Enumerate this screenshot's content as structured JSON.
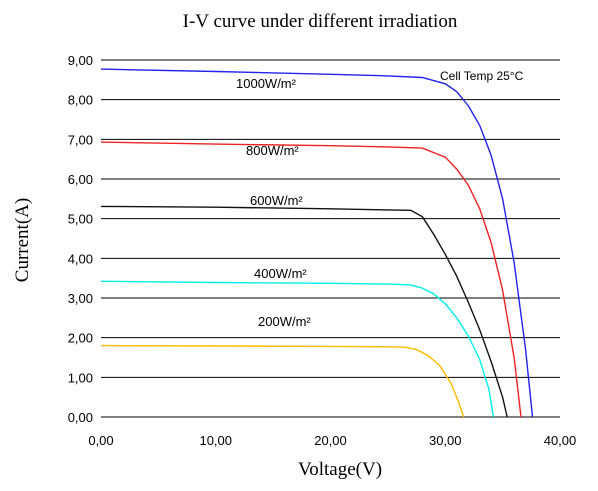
{
  "chart_data": {
    "type": "line",
    "title": "I-V curve under different irradiation",
    "xlabel": "Voltage(V)",
    "ylabel": "Current(A)",
    "xlim": [
      0,
      40
    ],
    "ylim": [
      0,
      9
    ],
    "x_ticks": [
      "0,00",
      "10,00",
      "20,00",
      "30,00",
      "40,00"
    ],
    "y_ticks": [
      "0,00",
      "1,00",
      "2,00",
      "3,00",
      "4,00",
      "5,00",
      "6,00",
      "7,00",
      "8,00",
      "9,00"
    ],
    "grid": "horizontal",
    "annotation": "Cell Temp 25°C",
    "series": [
      {
        "name": "1000W/m²",
        "color": "#2222ee",
        "points": [
          [
            0,
            8.77
          ],
          [
            10,
            8.71
          ],
          [
            20,
            8.64
          ],
          [
            25,
            8.6
          ],
          [
            28,
            8.56
          ],
          [
            30,
            8.4
          ],
          [
            31,
            8.2
          ],
          [
            32,
            7.85
          ],
          [
            33,
            7.35
          ],
          [
            34,
            6.6
          ],
          [
            35,
            5.5
          ],
          [
            36,
            3.9
          ],
          [
            37,
            1.7
          ],
          [
            37.6,
            0
          ]
        ]
      },
      {
        "name": "800W/m²",
        "color": "#ee2222",
        "points": [
          [
            0,
            6.93
          ],
          [
            10,
            6.88
          ],
          [
            20,
            6.84
          ],
          [
            25,
            6.81
          ],
          [
            28,
            6.78
          ],
          [
            30,
            6.55
          ],
          [
            31,
            6.25
          ],
          [
            32,
            5.85
          ],
          [
            33,
            5.25
          ],
          [
            34,
            4.4
          ],
          [
            35,
            3.2
          ],
          [
            36,
            1.5
          ],
          [
            36.6,
            0
          ]
        ]
      },
      {
        "name": "600W/m²",
        "color": "#111111",
        "points": [
          [
            0,
            5.31
          ],
          [
            10,
            5.29
          ],
          [
            20,
            5.25
          ],
          [
            25,
            5.22
          ],
          [
            27,
            5.21
          ],
          [
            28,
            5.05
          ],
          [
            29,
            4.6
          ],
          [
            30,
            4.1
          ],
          [
            31,
            3.55
          ],
          [
            32,
            2.9
          ],
          [
            33,
            2.2
          ],
          [
            34,
            1.4
          ],
          [
            35,
            0.5
          ],
          [
            35.4,
            0
          ]
        ]
      },
      {
        "name": "400W/m²",
        "color": "#00eeee",
        "points": [
          [
            0,
            3.42
          ],
          [
            10,
            3.39
          ],
          [
            20,
            3.37
          ],
          [
            25,
            3.35
          ],
          [
            27,
            3.33
          ],
          [
            28,
            3.25
          ],
          [
            29,
            3.1
          ],
          [
            30,
            2.85
          ],
          [
            31,
            2.5
          ],
          [
            32,
            2.05
          ],
          [
            33,
            1.45
          ],
          [
            33.8,
            0.7
          ],
          [
            34.2,
            0
          ]
        ]
      },
      {
        "name": "200W/m²",
        "color": "#ffbb00",
        "points": [
          [
            0,
            1.8
          ],
          [
            10,
            1.79
          ],
          [
            20,
            1.78
          ],
          [
            25,
            1.77
          ],
          [
            26.5,
            1.76
          ],
          [
            27.5,
            1.7
          ],
          [
            28.5,
            1.55
          ],
          [
            29.5,
            1.3
          ],
          [
            30.5,
            0.85
          ],
          [
            31.2,
            0.35
          ],
          [
            31.6,
            0
          ]
        ]
      }
    ]
  }
}
